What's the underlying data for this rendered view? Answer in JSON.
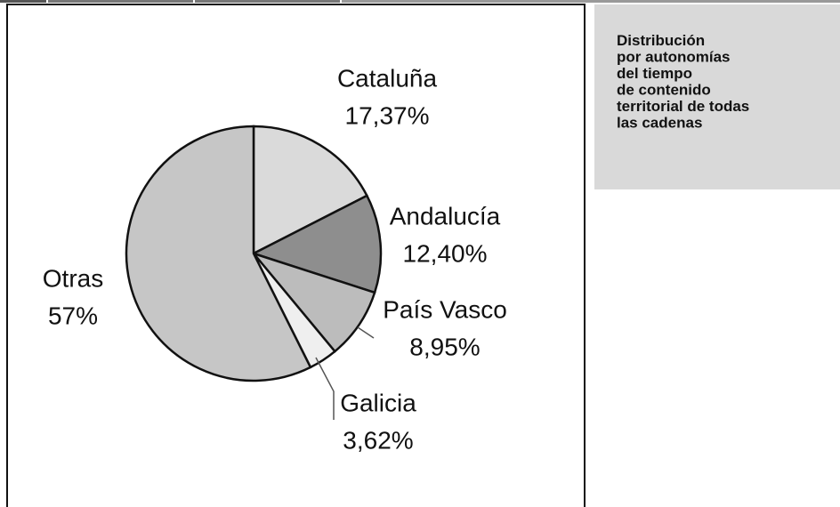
{
  "chart_data": {
    "type": "pie",
    "categories": [
      "Cataluña",
      "Andalucía",
      "País Vasco",
      "Galicia",
      "Otras"
    ],
    "values": [
      17.37,
      12.4,
      8.95,
      3.62,
      57
    ],
    "value_labels": [
      "17,37%",
      "12,40%",
      "8,95%",
      "3,62%",
      "57%"
    ],
    "colors": [
      "#dadada",
      "#8e8e8e",
      "#bcbcbc",
      "#efefef",
      "#c6c6c6"
    ]
  },
  "caption": {
    "lines": [
      "Distribución",
      "por autonomías",
      "del tiempo",
      "de contenido",
      "territorial de todas",
      "las cadenas"
    ]
  }
}
